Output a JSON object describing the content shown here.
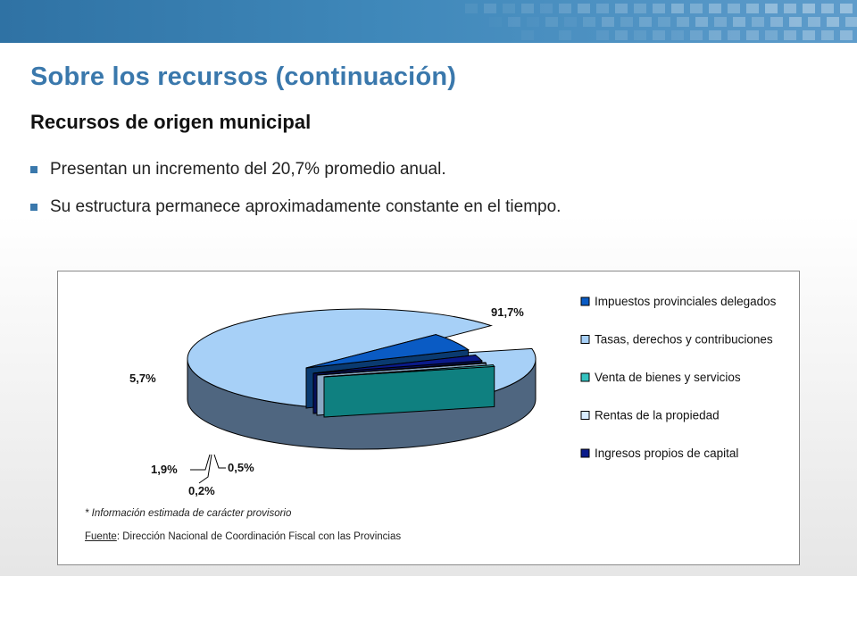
{
  "slide": {
    "title": "Sobre los recursos (continuación)",
    "subtitle": "Recursos de origen municipal",
    "bullets": [
      "Presentan un incremento del 20,7% promedio anual.",
      "Su estructura permanece aproximadamente constante en el tiempo."
    ]
  },
  "colors": {
    "title": "#3a78ac",
    "banner": "#3f88ba",
    "bullet": "#3a78ac"
  },
  "chart_data": {
    "type": "pie",
    "style": "3d-exploded",
    "legend_position": "right",
    "slices": [
      {
        "label": "Impuestos provinciales delegados",
        "value": 5.7,
        "value_label": "5,7%",
        "color": "#0a5bc4",
        "side_color": "#0a3a70"
      },
      {
        "label": "Tasas, derechos y contribuciones",
        "value": 91.7,
        "value_label": "91,7%",
        "color": "#a7d0f7",
        "side_color": "#4f6680"
      },
      {
        "label": "Venta de bienes y servicios",
        "value": 0.5,
        "value_label": "0,5%",
        "color": "#33c2bf",
        "side_color": "#0f8080"
      },
      {
        "label": "Rentas de la propiedad",
        "value": 0.2,
        "value_label": "0,2%",
        "color": "#d8ecff",
        "side_color": "#8aa8c4"
      },
      {
        "label": "Ingresos propios de capital",
        "value": 1.9,
        "value_label": "1,9%",
        "color": "#0a1a8a",
        "side_color": "#06105a"
      }
    ],
    "footnote": "* Información estimada de carácter provisorio",
    "source_label": "Fuente",
    "source_text": ": Dirección Nacional de Coordinación Fiscal con las Provincias"
  }
}
